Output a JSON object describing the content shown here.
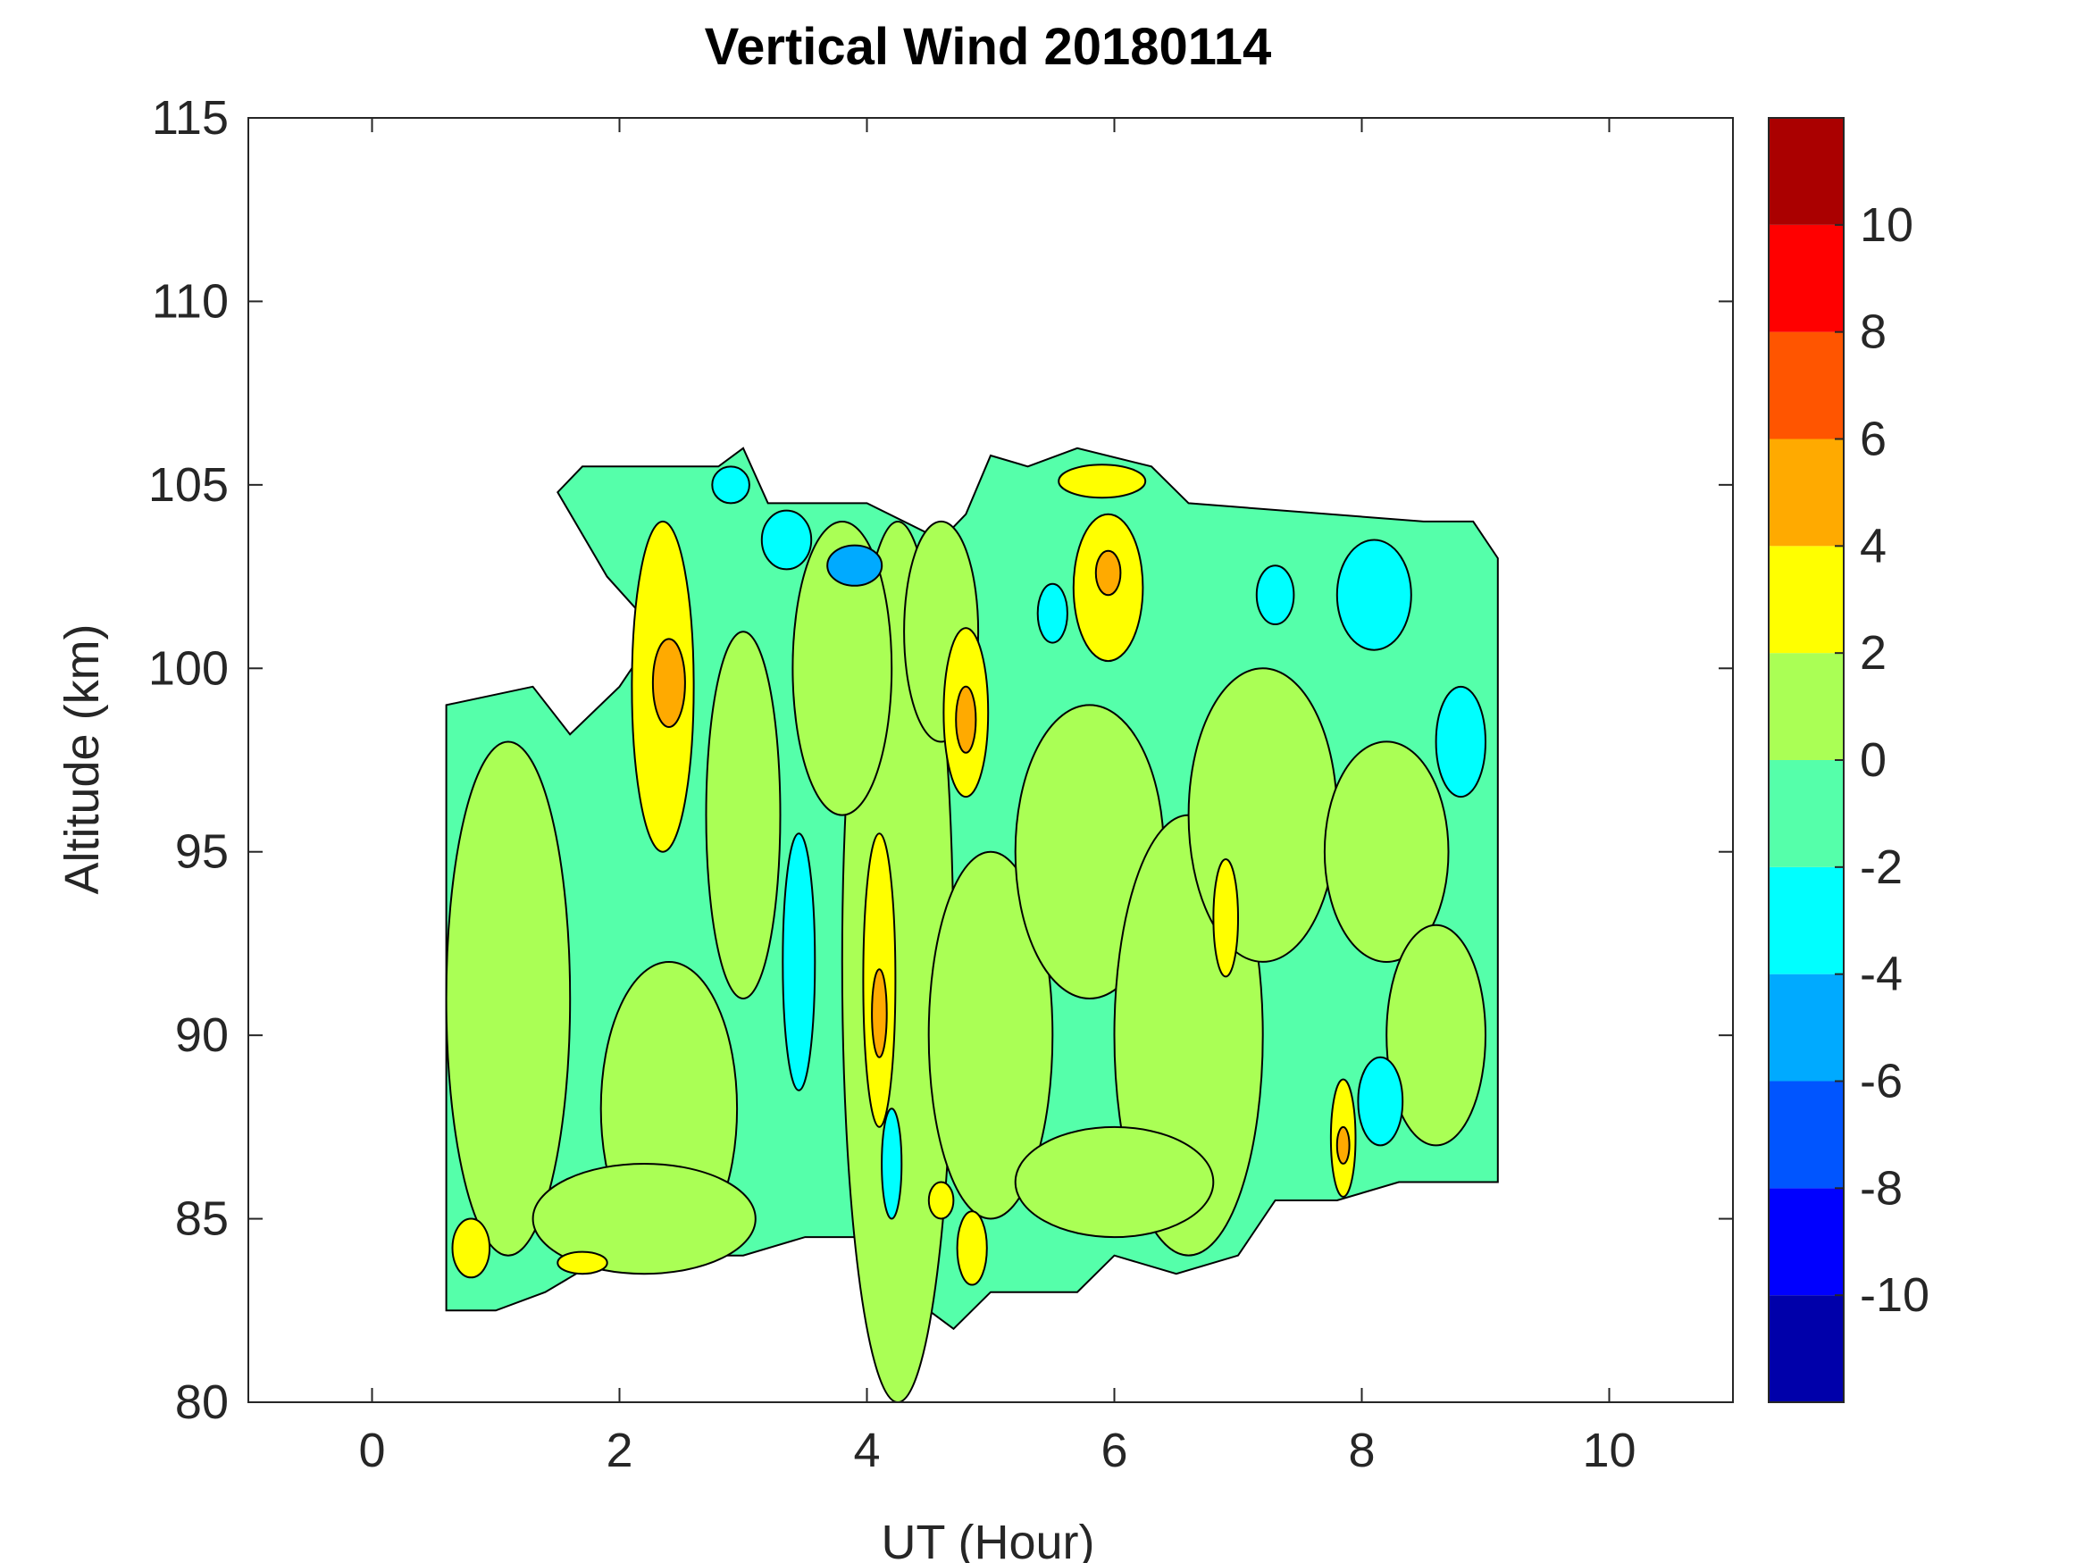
{
  "chart_data": {
    "type": "heatmap",
    "subtype": "filled-contour",
    "title": "Vertical Wind 20180114",
    "xlabel": "UT (Hour)",
    "ylabel": "Altitude (km)",
    "xlim": [
      -1,
      11
    ],
    "ylim": [
      80,
      115
    ],
    "xticks": [
      0,
      2,
      4,
      6,
      8,
      10
    ],
    "yticks": [
      80,
      85,
      90,
      95,
      100,
      105,
      110,
      115
    ],
    "grid": false,
    "colorbar": {
      "position": "right",
      "range": [
        -12,
        12
      ],
      "levels": [
        -12,
        -10,
        -8,
        -6,
        -4,
        -2,
        0,
        2,
        4,
        6,
        8,
        10,
        12
      ],
      "colors": [
        "#0000aa",
        "#0000ff",
        "#0055ff",
        "#00aaff",
        "#00ffff",
        "#55ffaa",
        "#aaff55",
        "#ffff00",
        "#ffaa00",
        "#ff5500",
        "#ff0000",
        "#aa0000"
      ],
      "ticks": [
        -10,
        -8,
        -6,
        -4,
        -2,
        0,
        2,
        4,
        6,
        8,
        10
      ]
    },
    "data_region": {
      "x_range": [
        0.6,
        9.1
      ],
      "y_range": [
        82,
        106
      ],
      "background_level": "-2 to 0"
    },
    "features": [
      {
        "x": 2.35,
        "y": 99.5,
        "rx": 0.25,
        "ry": 4.5,
        "value": 3
      },
      {
        "x": 2.4,
        "y": 99.6,
        "rx": 0.13,
        "ry": 1.2,
        "value": 5
      },
      {
        "x": 4.1,
        "y": 91.5,
        "rx": 0.13,
        "ry": 4.0,
        "value": 3
      },
      {
        "x": 4.1,
        "y": 90.6,
        "rx": 0.06,
        "ry": 1.2,
        "value": 5
      },
      {
        "x": 3.45,
        "y": 92.0,
        "rx": 0.13,
        "ry": 3.5,
        "value": -3
      },
      {
        "x": 4.8,
        "y": 98.8,
        "rx": 0.18,
        "ry": 2.3,
        "value": 3
      },
      {
        "x": 4.8,
        "y": 98.6,
        "rx": 0.08,
        "ry": 0.9,
        "value": 5
      },
      {
        "x": 5.95,
        "y": 102.2,
        "rx": 0.28,
        "ry": 2.0,
        "value": 3
      },
      {
        "x": 5.95,
        "y": 102.6,
        "rx": 0.1,
        "ry": 0.6,
        "value": 5
      },
      {
        "x": 5.9,
        "y": 105.1,
        "rx": 0.35,
        "ry": 0.45,
        "value": 3
      },
      {
        "x": 3.9,
        "y": 102.8,
        "rx": 0.22,
        "ry": 0.55,
        "value": -5
      },
      {
        "x": 6.9,
        "y": 93.2,
        "rx": 0.1,
        "ry": 1.6,
        "value": 3
      },
      {
        "x": 7.85,
        "y": 87.2,
        "rx": 0.1,
        "ry": 1.6,
        "value": 3
      },
      {
        "x": 7.85,
        "y": 87.0,
        "rx": 0.05,
        "ry": 0.5,
        "value": 5
      },
      {
        "x": 0.8,
        "y": 84.2,
        "rx": 0.15,
        "ry": 0.8,
        "value": 3
      },
      {
        "x": 8.15,
        "y": 88.2,
        "rx": 0.18,
        "ry": 1.2,
        "value": -3
      },
      {
        "x": 8.8,
        "y": 98.0,
        "rx": 0.2,
        "ry": 1.5,
        "value": -3
      },
      {
        "x": 8.1,
        "y": 102.0,
        "rx": 0.3,
        "ry": 1.5,
        "value": -3
      },
      {
        "x": 4.85,
        "y": 84.2,
        "rx": 0.12,
        "ry": 1.0,
        "value": 3
      },
      {
        "x": 4.6,
        "y": 85.5,
        "rx": 0.1,
        "ry": 0.5,
        "value": 3
      },
      {
        "x": 1.7,
        "y": 83.8,
        "rx": 0.2,
        "ry": 0.3,
        "value": 3
      },
      {
        "x": 2.9,
        "y": 105.0,
        "rx": 0.15,
        "ry": 0.5,
        "value": -3
      },
      {
        "x": 3.35,
        "y": 103.5,
        "rx": 0.2,
        "ry": 0.8,
        "value": -3
      },
      {
        "x": 7.3,
        "y": 102.0,
        "rx": 0.15,
        "ry": 0.8,
        "value": -3
      },
      {
        "x": 5.5,
        "y": 101.5,
        "rx": 0.12,
        "ry": 0.8,
        "value": -3
      },
      {
        "x": 4.2,
        "y": 86.5,
        "rx": 0.08,
        "ry": 1.5,
        "value": -3
      }
    ]
  }
}
